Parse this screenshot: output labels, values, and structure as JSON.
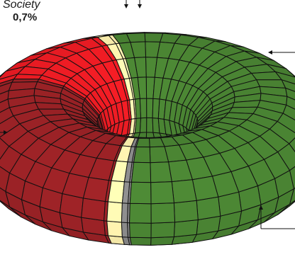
{
  "chart_data": {
    "type": "pie",
    "style": "3d-torus",
    "slices": [
      {
        "value": 51.9,
        "color": "#4a8433"
      },
      {
        "value": 0.7,
        "color": "#8a8a8a"
      },
      {
        "value": 1.3,
        "color": "#fff3b0"
      },
      {
        "value": 26.1,
        "color": "#9b2226"
      },
      {
        "value": 14.5,
        "color": "#ee1c24"
      },
      {
        "value": 1.8,
        "color": "#fff3b0"
      },
      {
        "value": 3.7,
        "color": "#4a8433"
      }
    ],
    "annotations": [
      {
        "label": "Society",
        "value_label": "0,7%"
      }
    ]
  }
}
